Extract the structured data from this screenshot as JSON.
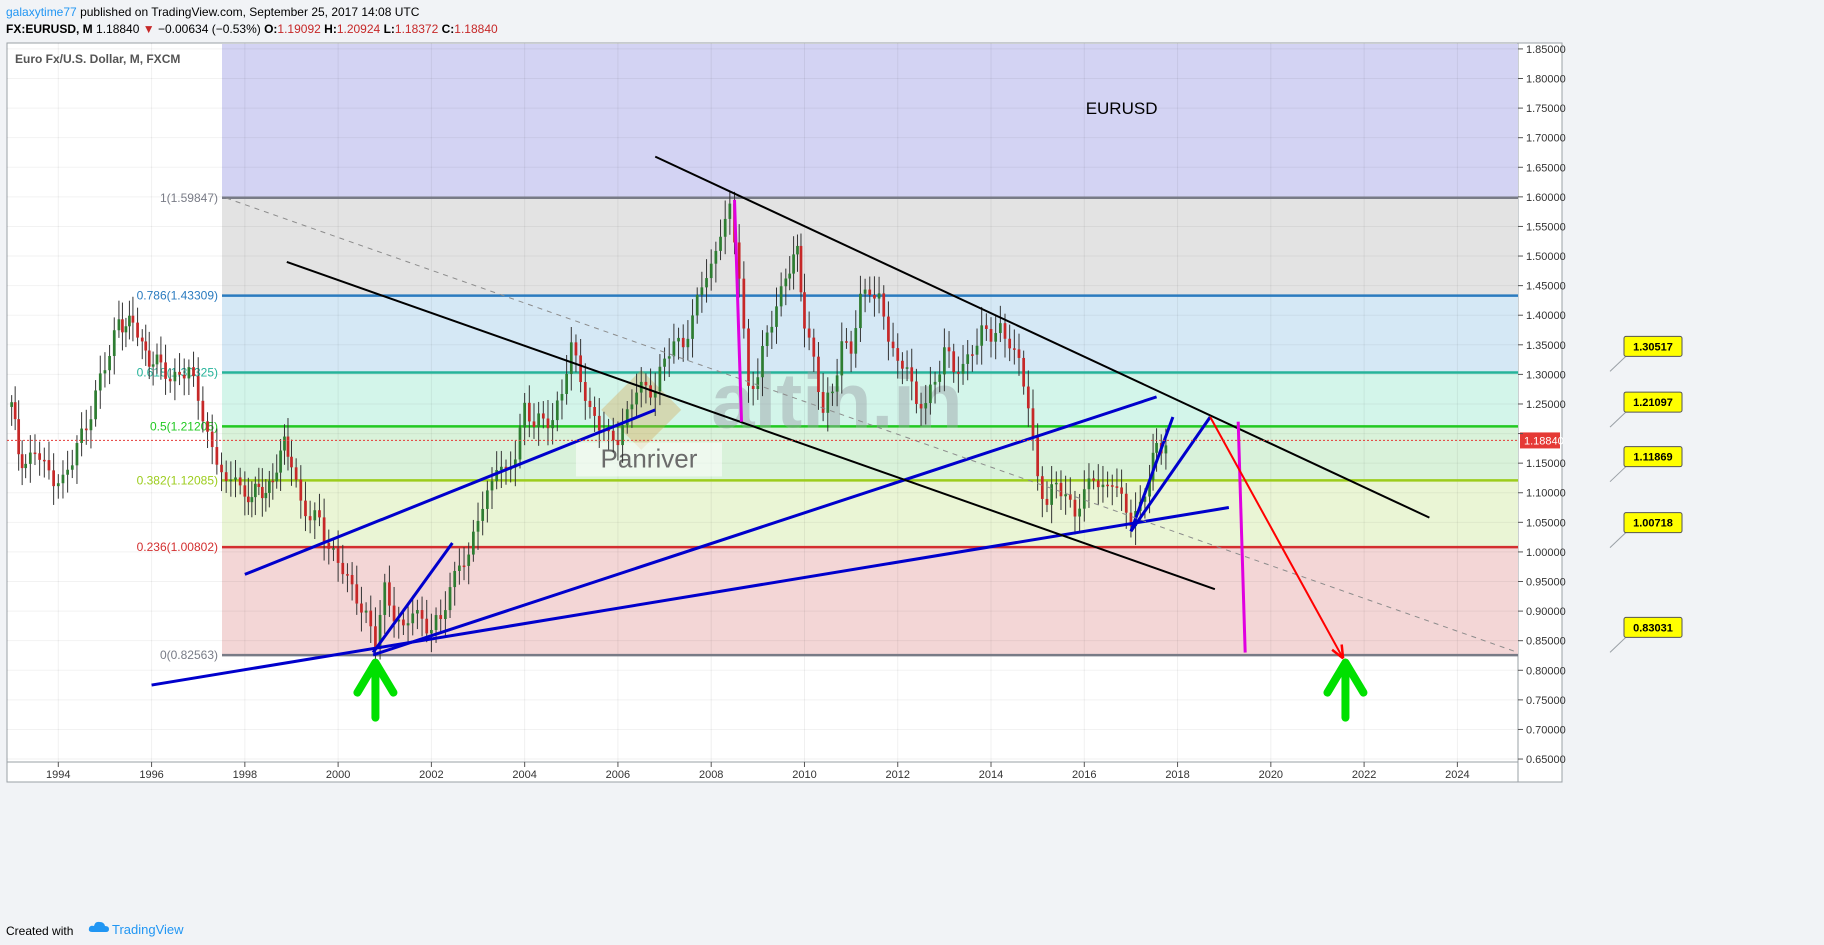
{
  "header": {
    "author": "galaxytime77",
    "published": "published on TradingView.com, September 25, 2017 14:08 UTC",
    "symbol": "FX:EURUSD, M",
    "last": "1.18840",
    "change_arrow": "▼",
    "change": "−0.00634 (−0.53%)",
    "open_label": "O:",
    "open": "1.19092",
    "high_label": "H:",
    "high": "1.20924",
    "low_label": "L:",
    "low": "1.18372",
    "close_label": "C:",
    "close": "1.18840"
  },
  "footer": {
    "created": "Created with",
    "brand": "TradingView",
    "logo_icon": "tradingview-cloud-icon"
  },
  "chart_data": {
    "type": "candlestick",
    "instrument_label": "Euro Fx/U.S. Dollar, M, FXCM",
    "annotation_text": "EURUSD",
    "watermark_text": "altin.in",
    "watermark_sub": "Panriver",
    "ylim": [
      0.645,
      1.86
    ],
    "xlim": [
      1992.9,
      2025.3
    ],
    "y_ticks": [
      "0.65000",
      "0.70000",
      "0.75000",
      "0.80000",
      "0.85000",
      "0.90000",
      "0.95000",
      "1.00000",
      "1.05000",
      "1.10000",
      "1.15000",
      "1.20000",
      "1.25000",
      "1.30000",
      "1.35000",
      "1.40000",
      "1.45000",
      "1.50000",
      "1.55000",
      "1.60000",
      "1.65000",
      "1.70000",
      "1.75000",
      "1.80000",
      "1.85000"
    ],
    "x_ticks": [
      "1994",
      "1996",
      "1998",
      "2000",
      "2002",
      "2004",
      "2006",
      "2008",
      "2010",
      "2012",
      "2014",
      "2016",
      "2018",
      "2020",
      "2022",
      "2024"
    ],
    "current_price": "1.18840",
    "colors": {
      "up": "#2e7d32",
      "down": "#c62828",
      "wick": "#333333",
      "channel": "#0000cc",
      "trend": "#000000",
      "pink": "#e000e0",
      "red_arrow": "#ff0000",
      "green_arrow": "#00e000",
      "label_bg": "#ffff00",
      "price_badge": "#e53935"
    },
    "fib_levels": [
      {
        "label": "1(1.59847)",
        "value": 1.59847,
        "color": "#787b86",
        "fill": "#e3e3e3"
      },
      {
        "label": "0.786(1.43309)",
        "value": 1.43309,
        "color": "#2a7bbf",
        "fill": "#d5e8f5"
      },
      {
        "label": "0.618(1.30325)",
        "value": 1.30325,
        "color": "#26b39a",
        "fill": "#d3f5ea"
      },
      {
        "label": "0.5(1.21205)",
        "value": 1.21205,
        "color": "#22c922",
        "fill": "#d9f2da"
      },
      {
        "label": "0.382(1.12085)",
        "value": 1.12085,
        "color": "#9ccc1c",
        "fill": "#eaf5d5"
      },
      {
        "label": "0.236(1.00802)",
        "value": 1.00802,
        "color": "#d32f2f",
        "fill": "#f3d6d6"
      },
      {
        "label": "0(0.82563)",
        "value": 0.82563,
        "color": "#787b86",
        "fill": ""
      }
    ],
    "fib_top_fill": "#d3d3f3",
    "price_labels": [
      {
        "label": "1.30517",
        "value": 1.30517
      },
      {
        "label": "1.21097",
        "value": 1.21097
      },
      {
        "label": "1.11869",
        "value": 1.11869
      },
      {
        "label": "1.00718",
        "value": 1.00718
      },
      {
        "label": "0.83031",
        "value": 0.83031
      }
    ],
    "monthly_close_path": [
      [
        1993.0,
        1.245
      ],
      [
        1993.15,
        1.17
      ],
      [
        1993.3,
        1.15
      ],
      [
        1993.5,
        1.17
      ],
      [
        1993.7,
        1.14
      ],
      [
        1993.9,
        1.13
      ],
      [
        1994.1,
        1.12
      ],
      [
        1994.3,
        1.15
      ],
      [
        1994.5,
        1.2
      ],
      [
        1994.7,
        1.24
      ],
      [
        1994.9,
        1.29
      ],
      [
        1995.1,
        1.33
      ],
      [
        1995.3,
        1.4
      ],
      [
        1995.45,
        1.38
      ],
      [
        1995.6,
        1.385
      ],
      [
        1995.8,
        1.35
      ],
      [
        1995.95,
        1.33
      ],
      [
        1996.2,
        1.31
      ],
      [
        1996.4,
        1.29
      ],
      [
        1996.6,
        1.31
      ],
      [
        1996.8,
        1.3
      ],
      [
        1997.0,
        1.26
      ],
      [
        1997.2,
        1.2
      ],
      [
        1997.4,
        1.16
      ],
      [
        1997.6,
        1.1
      ],
      [
        1997.8,
        1.14
      ],
      [
        1998.0,
        1.09
      ],
      [
        1998.3,
        1.1
      ],
      [
        1998.6,
        1.12
      ],
      [
        1998.85,
        1.18
      ],
      [
        1999.0,
        1.16
      ],
      [
        1999.2,
        1.08
      ],
      [
        1999.4,
        1.05
      ],
      [
        1999.6,
        1.06
      ],
      [
        1999.8,
        1.01
      ],
      [
        2000.0,
        0.98
      ],
      [
        2000.2,
        0.95
      ],
      [
        2000.4,
        0.93
      ],
      [
        2000.6,
        0.89
      ],
      [
        2000.8,
        0.84
      ],
      [
        2001.0,
        0.94
      ],
      [
        2001.2,
        0.9
      ],
      [
        2001.4,
        0.86
      ],
      [
        2001.6,
        0.9
      ],
      [
        2001.8,
        0.89
      ],
      [
        2002.0,
        0.87
      ],
      [
        2002.2,
        0.88
      ],
      [
        2002.4,
        0.94
      ],
      [
        2002.6,
        0.99
      ],
      [
        2002.8,
        0.98
      ],
      [
        2003.0,
        1.06
      ],
      [
        2003.2,
        1.1
      ],
      [
        2003.4,
        1.15
      ],
      [
        2003.6,
        1.12
      ],
      [
        2003.8,
        1.17
      ],
      [
        2004.0,
        1.25
      ],
      [
        2004.2,
        1.21
      ],
      [
        2004.4,
        1.22
      ],
      [
        2004.6,
        1.23
      ],
      [
        2004.8,
        1.27
      ],
      [
        2005.0,
        1.34
      ],
      [
        2005.2,
        1.3
      ],
      [
        2005.4,
        1.24
      ],
      [
        2005.6,
        1.21
      ],
      [
        2005.8,
        1.19
      ],
      [
        2006.0,
        1.2
      ],
      [
        2006.2,
        1.23
      ],
      [
        2006.4,
        1.27
      ],
      [
        2006.6,
        1.28
      ],
      [
        2006.8,
        1.28
      ],
      [
        2007.0,
        1.32
      ],
      [
        2007.2,
        1.35
      ],
      [
        2007.4,
        1.36
      ],
      [
        2007.6,
        1.39
      ],
      [
        2007.8,
        1.45
      ],
      [
        2008.0,
        1.48
      ],
      [
        2008.2,
        1.55
      ],
      [
        2008.4,
        1.57
      ],
      [
        2008.6,
        1.47
      ],
      [
        2008.8,
        1.28
      ],
      [
        2009.0,
        1.3
      ],
      [
        2009.2,
        1.36
      ],
      [
        2009.4,
        1.42
      ],
      [
        2009.6,
        1.47
      ],
      [
        2009.85,
        1.5
      ],
      [
        2010.0,
        1.39
      ],
      [
        2010.2,
        1.33
      ],
      [
        2010.4,
        1.23
      ],
      [
        2010.6,
        1.27
      ],
      [
        2010.8,
        1.36
      ],
      [
        2011.0,
        1.34
      ],
      [
        2011.2,
        1.42
      ],
      [
        2011.4,
        1.45
      ],
      [
        2011.6,
        1.43
      ],
      [
        2011.8,
        1.36
      ],
      [
        2012.0,
        1.31
      ],
      [
        2012.2,
        1.33
      ],
      [
        2012.4,
        1.24
      ],
      [
        2012.6,
        1.25
      ],
      [
        2012.8,
        1.29
      ],
      [
        2013.0,
        1.35
      ],
      [
        2013.2,
        1.3
      ],
      [
        2013.4,
        1.31
      ],
      [
        2013.6,
        1.35
      ],
      [
        2013.8,
        1.37
      ],
      [
        2014.0,
        1.36
      ],
      [
        2014.2,
        1.38
      ],
      [
        2014.4,
        1.36
      ],
      [
        2014.6,
        1.31
      ],
      [
        2014.8,
        1.25
      ],
      [
        2015.0,
        1.13
      ],
      [
        2015.2,
        1.08
      ],
      [
        2015.4,
        1.11
      ],
      [
        2015.6,
        1.1
      ],
      [
        2015.8,
        1.07
      ],
      [
        2016.0,
        1.09
      ],
      [
        2016.2,
        1.13
      ],
      [
        2016.4,
        1.11
      ],
      [
        2016.6,
        1.12
      ],
      [
        2016.8,
        1.08
      ],
      [
        2017.0,
        1.06
      ],
      [
        2017.2,
        1.08
      ],
      [
        2017.4,
        1.12
      ],
      [
        2017.55,
        1.18
      ],
      [
        2017.75,
        1.1884
      ]
    ],
    "trendlines": [
      {
        "name": "channel-upper",
        "from": [
          2000.75,
          0.826
        ],
        "to": [
          2017.55,
          1.262
        ],
        "color": "channel",
        "width": 3
      },
      {
        "name": "channel-lower",
        "from": [
          1996.0,
          0.775
        ],
        "to": [
          2019.1,
          1.075
        ],
        "color": "channel",
        "width": 3
      },
      {
        "name": "channel-mid",
        "from": [
          1998.0,
          0.962
        ],
        "to": [
          2006.8,
          1.24
        ],
        "color": "channel",
        "width": 3
      },
      {
        "name": "leg-up-2000",
        "from": [
          2000.75,
          0.83
        ],
        "to": [
          2002.45,
          1.015
        ],
        "color": "channel",
        "width": 3
      },
      {
        "name": "leg-up-2017",
        "from": [
          2017.0,
          1.035
        ],
        "to": [
          2017.9,
          1.228
        ],
        "color": "channel",
        "width": 3
      },
      {
        "name": "descending-upper",
        "from": [
          2006.8,
          1.668
        ],
        "to": [
          2023.4,
          1.058
        ],
        "color": "trend",
        "width": 2
      },
      {
        "name": "descending-lower",
        "from": [
          1998.9,
          1.49
        ],
        "to": [
          2018.8,
          0.937
        ],
        "color": "trend",
        "width": 2
      },
      {
        "name": "fib-diagonal",
        "from": [
          1997.6,
          1.598
        ],
        "to": [
          2025.3,
          0.83
        ],
        "color": "dashed",
        "width": 1
      }
    ],
    "projection": {
      "blue_leg": {
        "from": [
          2017.0,
          1.035
        ],
        "to": [
          2018.7,
          1.228
        ]
      },
      "red_arrow": {
        "from": [
          2018.7,
          1.228
        ],
        "to": [
          2021.55,
          0.82
        ]
      },
      "pink_line_2008": {
        "from": [
          2008.5,
          1.595
        ],
        "to": [
          2008.65,
          1.22
        ]
      },
      "pink_line_2019": {
        "from": [
          2019.3,
          1.22
        ],
        "to": [
          2019.45,
          0.83
        ]
      }
    },
    "green_arrows_x": [
      2000.8,
      2021.6
    ]
  }
}
